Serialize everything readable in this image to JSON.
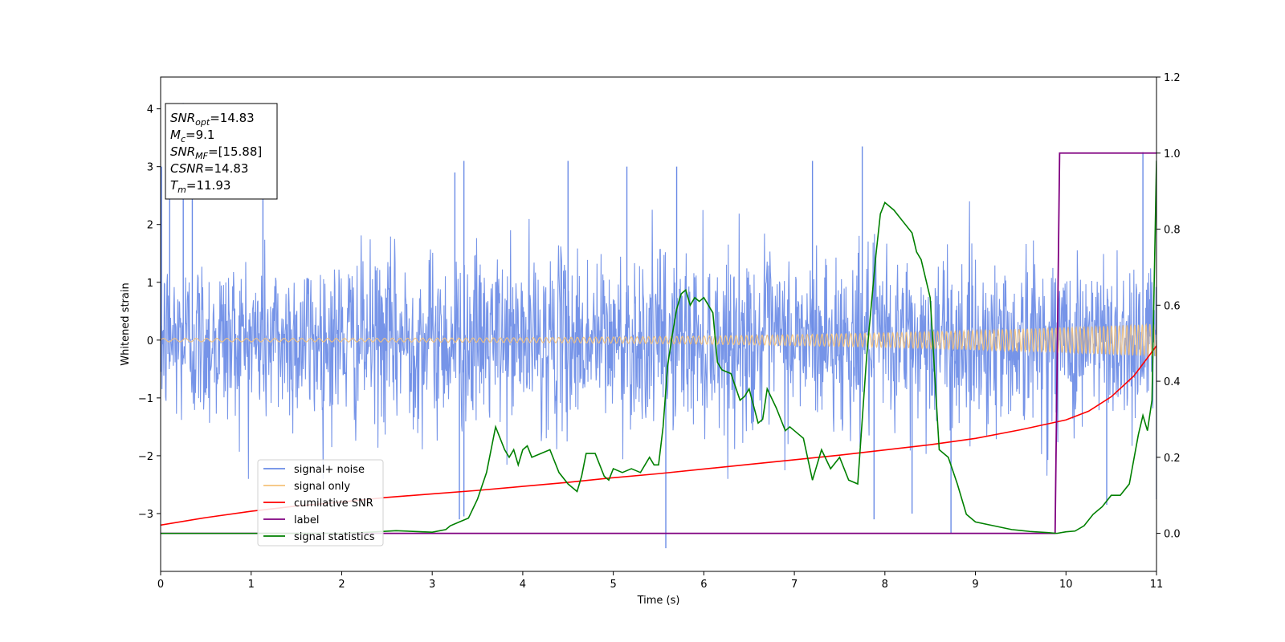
{
  "chart_data": {
    "type": "line",
    "xlabel": "Time (s)",
    "ylabel": "Whitened strain",
    "xlim": [
      0,
      11
    ],
    "ylim": [
      -4.0,
      4.55
    ],
    "y2lim": [
      -0.1,
      1.2
    ],
    "x_ticks": [
      "0",
      "1",
      "2",
      "3",
      "4",
      "5",
      "6",
      "7",
      "8",
      "9",
      "10",
      "11"
    ],
    "y_ticks": [
      "−3",
      "−2",
      "−1",
      "0",
      "1",
      "2",
      "3",
      "4"
    ],
    "y2_ticks": [
      "0.0",
      "0.2",
      "0.4",
      "0.6",
      "0.8",
      "1.0",
      "1.2"
    ],
    "colors": {
      "noise": "#6a8be6",
      "signal": "#f5c27a",
      "snr": "#ff0000",
      "label": "#800080",
      "stats": "#008000"
    },
    "series": [
      {
        "name": "signal+ noise",
        "axis": "left",
        "pattern": "gaussian noise, amplitude ≈ ±2.0 with spikes to ±3.3",
        "extremes": [
          [
            0.01,
            3.0
          ],
          [
            0.1,
            2.9
          ],
          [
            0.25,
            4.1
          ],
          [
            0.35,
            3.0
          ],
          [
            1.13,
            2.7
          ],
          [
            3.25,
            2.9
          ],
          [
            3.35,
            3.1
          ],
          [
            4.5,
            3.1
          ],
          [
            5.15,
            3.0
          ],
          [
            5.7,
            3.0
          ],
          [
            7.2,
            3.1
          ],
          [
            7.75,
            3.35
          ],
          [
            10.85,
            3.25
          ],
          [
            5.58,
            -3.6
          ],
          [
            3.3,
            -3.1
          ],
          [
            3.35,
            -3.05
          ],
          [
            7.88,
            -3.1
          ],
          [
            8.73,
            -3.35
          ],
          [
            8.3,
            -3.0
          ],
          [
            10.45,
            -2.85
          ],
          [
            11.0,
            -2.75
          ]
        ]
      },
      {
        "name": "signal only",
        "axis": "left",
        "pattern": "chirp, amplitude grows from 0.03 to 0.28",
        "f0": 8,
        "f1": 24,
        "amp0": 0.03,
        "amp1": 0.28
      },
      {
        "name": "cumilative SNR",
        "axis": "left",
        "x": [
          0,
          0.5,
          1,
          1.5,
          2,
          2.5,
          3,
          3.5,
          4,
          4.5,
          5,
          5.5,
          6,
          6.5,
          7,
          7.5,
          8,
          8.5,
          9,
          9.5,
          10,
          10.25,
          10.5,
          10.75,
          11.0
        ],
        "values": [
          -3.2,
          -3.07,
          -2.96,
          -2.87,
          -2.8,
          -2.72,
          -2.66,
          -2.6,
          -2.53,
          -2.46,
          -2.38,
          -2.31,
          -2.23,
          -2.15,
          -2.07,
          -1.99,
          -1.9,
          -1.81,
          -1.7,
          -1.55,
          -1.38,
          -1.23,
          -0.98,
          -0.62,
          -0.1
        ]
      },
      {
        "name": "label",
        "axis": "right",
        "x": [
          0,
          9.88,
          9.93,
          11.0
        ],
        "values": [
          0.0,
          0.0,
          1.0,
          1.0
        ]
      },
      {
        "name": "signal statistics",
        "axis": "right",
        "x": [
          0,
          1,
          2,
          2.3,
          2.6,
          3,
          3.15,
          3.2,
          3.3,
          3.4,
          3.5,
          3.6,
          3.7,
          3.8,
          3.85,
          3.9,
          3.95,
          4.0,
          4.05,
          4.1,
          4.2,
          4.3,
          4.4,
          4.5,
          4.6,
          4.65,
          4.7,
          4.8,
          4.9,
          4.95,
          5.0,
          5.1,
          5.2,
          5.3,
          5.4,
          5.45,
          5.5,
          5.55,
          5.6,
          5.65,
          5.7,
          5.75,
          5.8,
          5.85,
          5.9,
          5.95,
          6.0,
          6.05,
          6.1,
          6.15,
          6.2,
          6.3,
          6.4,
          6.45,
          6.5,
          6.6,
          6.65,
          6.7,
          6.8,
          6.9,
          6.95,
          7.0,
          7.1,
          7.2,
          7.3,
          7.4,
          7.5,
          7.6,
          7.7,
          7.8,
          7.9,
          7.95,
          8.0,
          8.1,
          8.2,
          8.3,
          8.35,
          8.4,
          8.5,
          8.6,
          8.7,
          8.8,
          8.9,
          9.0,
          9.2,
          9.4,
          9.6,
          9.8,
          9.9,
          10.0,
          10.1,
          10.2,
          10.3,
          10.4,
          10.5,
          10.6,
          10.7,
          10.8,
          10.85,
          10.9,
          10.95,
          11.0
        ],
        "values": [
          0.0,
          0.0,
          0.0,
          0.003,
          0.007,
          0.003,
          0.01,
          0.02,
          0.03,
          0.04,
          0.09,
          0.16,
          0.28,
          0.22,
          0.2,
          0.22,
          0.18,
          0.22,
          0.23,
          0.2,
          0.21,
          0.22,
          0.16,
          0.13,
          0.11,
          0.15,
          0.21,
          0.21,
          0.15,
          0.14,
          0.17,
          0.16,
          0.17,
          0.16,
          0.2,
          0.18,
          0.18,
          0.28,
          0.44,
          0.52,
          0.59,
          0.63,
          0.64,
          0.6,
          0.62,
          0.61,
          0.62,
          0.6,
          0.58,
          0.45,
          0.43,
          0.42,
          0.35,
          0.36,
          0.38,
          0.29,
          0.3,
          0.38,
          0.33,
          0.27,
          0.28,
          0.27,
          0.25,
          0.14,
          0.22,
          0.17,
          0.2,
          0.14,
          0.13,
          0.47,
          0.73,
          0.84,
          0.87,
          0.85,
          0.82,
          0.79,
          0.74,
          0.72,
          0.62,
          0.22,
          0.2,
          0.13,
          0.05,
          0.03,
          0.02,
          0.01,
          0.005,
          0.002,
          0.0,
          0.004,
          0.006,
          0.02,
          0.05,
          0.07,
          0.1,
          0.1,
          0.13,
          0.26,
          0.31,
          0.27,
          0.35,
          0.98
        ]
      }
    ],
    "legend": {
      "placement": "lower-left",
      "entries": [
        "signal+ noise",
        "signal only",
        "cumilative SNR",
        "label",
        "signal statistics"
      ]
    },
    "annotation": {
      "placement": "upper-left",
      "lines": [
        {
          "var": "SNR",
          "sub": "opt",
          "value": "=14.83"
        },
        {
          "var": "M",
          "sub": "c",
          "value": "=9.1"
        },
        {
          "var": "SNR",
          "sub": "MF",
          "value": "=[15.88]"
        },
        {
          "var": "CSNR",
          "sub": "",
          "value": "=14.83"
        },
        {
          "var": "T",
          "sub": "m",
          "value": "=11.93"
        }
      ]
    }
  }
}
